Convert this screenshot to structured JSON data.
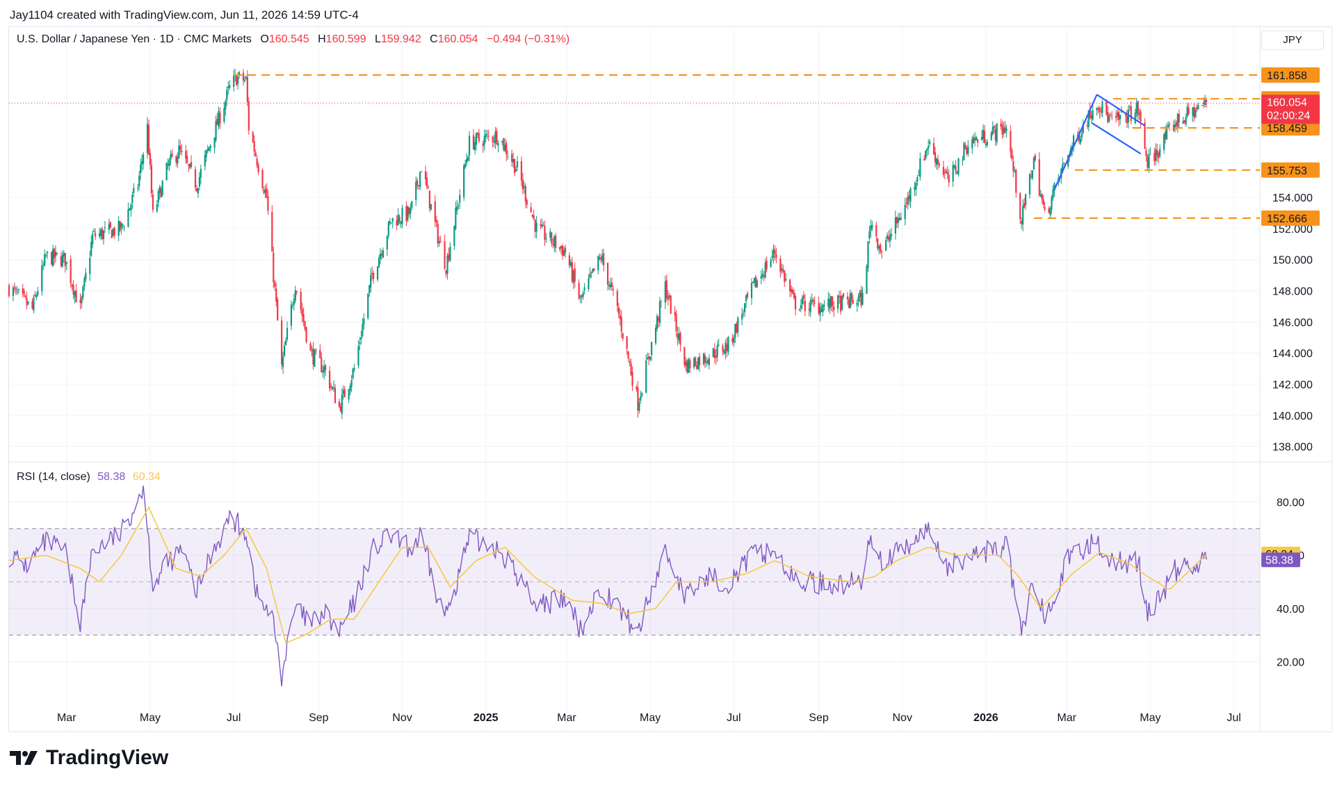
{
  "header": {
    "created_line": "Jay1104 created with TradingView.com, Jun 11, 2026 14:59 UTC-4"
  },
  "legend": {
    "symbol": "U.S. Dollar / Japanese Yen · 1D · CMC Markets",
    "open_label": "O",
    "open": "160.545",
    "high_label": "H",
    "high": "160.599",
    "low_label": "L",
    "low": "159.942",
    "close_label": "C",
    "close": "160.054",
    "change": "−0.494 (−0.31%)"
  },
  "currency_button": "JPY",
  "rsi_legend": {
    "label": "RSI (14, close)",
    "rsi": "58.38",
    "ma": "60.34"
  },
  "brand": "TradingView",
  "colors": {
    "up": "#089981",
    "down": "#f23645",
    "level": "#f7931a",
    "rsi": "#7e57c2",
    "rsi_ma": "#f7c948",
    "pattern": "#2962ff",
    "rsi_band": "#7e57c2"
  },
  "chart_data": [
    {
      "type": "candlestick",
      "title": "U.S. Dollar / Japanese Yen · 1D · CMC Markets",
      "x_ticks": [
        {
          "label": "Mar",
          "date": "2024-03-01"
        },
        {
          "label": "May",
          "date": "2024-05-01"
        },
        {
          "label": "Jul",
          "date": "2024-07-01"
        },
        {
          "label": "Sep",
          "date": "2024-09-01"
        },
        {
          "label": "Nov",
          "date": "2024-11-01"
        },
        {
          "label": "2025",
          "date": "2025-01-01",
          "bold": true
        },
        {
          "label": "Mar",
          "date": "2025-03-01"
        },
        {
          "label": "May",
          "date": "2025-05-01"
        },
        {
          "label": "Jul",
          "date": "2025-07-01"
        },
        {
          "label": "Sep",
          "date": "2025-09-01"
        },
        {
          "label": "Nov",
          "date": "2025-11-01"
        },
        {
          "label": "2026",
          "date": "2026-01-01",
          "bold": true
        },
        {
          "label": "Mar",
          "date": "2026-03-01"
        },
        {
          "label": "May",
          "date": "2026-05-01"
        },
        {
          "label": "Jul",
          "date": "2026-07-01"
        }
      ],
      "y_ticks": [
        "138.000",
        "140.000",
        "142.000",
        "144.000",
        "146.000",
        "148.000",
        "150.000",
        "152.000",
        "154.000"
      ],
      "ylim": [
        137.0,
        164.0
      ],
      "xlim": [
        "2024-01-19",
        "2026-07-20"
      ],
      "horizontal_levels": [
        {
          "label": "161.858",
          "value": 161.858,
          "from": "2024-07-01"
        },
        {
          "label": "160.332",
          "value": 160.332,
          "from": "2026-04-04"
        },
        {
          "label": "158.459",
          "value": 158.459,
          "from": "2026-04-18"
        },
        {
          "label": "155.753",
          "value": 155.753,
          "from": "2026-03-07"
        },
        {
          "label": "152.666",
          "value": 152.666,
          "from": "2026-02-05"
        }
      ],
      "last_price": {
        "label": "160.054",
        "value": 160.054,
        "countdown": "02:00:24"
      },
      "pattern_lines": [
        {
          "from": [
            "2026-02-20",
            154.5
          ],
          "to": [
            "2026-03-23",
            160.6
          ]
        },
        {
          "from": [
            "2026-03-23",
            160.6
          ],
          "to": [
            "2026-04-27",
            158.6
          ]
        },
        {
          "from": [
            "2026-03-19",
            158.8
          ],
          "to": [
            "2026-04-24",
            156.8
          ]
        }
      ],
      "price_path": [
        {
          "date": "2024-01-19",
          "price": 148.2
        },
        {
          "date": "2024-02-05",
          "price": 146.8
        },
        {
          "date": "2024-02-15",
          "price": 150.2
        },
        {
          "date": "2024-02-29",
          "price": 150.0
        },
        {
          "date": "2024-03-11",
          "price": 146.8
        },
        {
          "date": "2024-03-20",
          "price": 151.5
        },
        {
          "date": "2024-04-10",
          "price": 152.0
        },
        {
          "date": "2024-04-22",
          "price": 154.8
        },
        {
          "date": "2024-04-29",
          "price": 158.5
        },
        {
          "date": "2024-05-03",
          "price": 152.8
        },
        {
          "date": "2024-05-14",
          "price": 156.0
        },
        {
          "date": "2024-05-22",
          "price": 157.0
        },
        {
          "date": "2024-06-04",
          "price": 154.8
        },
        {
          "date": "2024-06-14",
          "price": 157.5
        },
        {
          "date": "2024-06-28",
          "price": 161.0
        },
        {
          "date": "2024-07-03",
          "price": 161.7
        },
        {
          "date": "2024-07-10",
          "price": 161.5
        },
        {
          "date": "2024-07-12",
          "price": 158.5
        },
        {
          "date": "2024-07-25",
          "price": 154.0
        },
        {
          "date": "2024-08-05",
          "price": 143.0
        },
        {
          "date": "2024-08-15",
          "price": 148.5
        },
        {
          "date": "2024-08-26",
          "price": 144.0
        },
        {
          "date": "2024-09-05",
          "price": 143.0
        },
        {
          "date": "2024-09-16",
          "price": 140.5
        },
        {
          "date": "2024-09-27",
          "price": 143.0
        },
        {
          "date": "2024-10-10",
          "price": 149.0
        },
        {
          "date": "2024-10-24",
          "price": 152.5
        },
        {
          "date": "2024-11-07",
          "price": 153.0
        },
        {
          "date": "2024-11-15",
          "price": 156.0
        },
        {
          "date": "2024-11-27",
          "price": 151.5
        },
        {
          "date": "2024-12-03",
          "price": 149.6
        },
        {
          "date": "2024-12-20",
          "price": 157.5
        },
        {
          "date": "2025-01-10",
          "price": 158.0
        },
        {
          "date": "2025-01-24",
          "price": 155.8
        },
        {
          "date": "2025-02-07",
          "price": 152.0
        },
        {
          "date": "2025-02-28",
          "price": 150.5
        },
        {
          "date": "2025-03-11",
          "price": 147.3
        },
        {
          "date": "2025-03-26",
          "price": 150.2
        },
        {
          "date": "2025-04-08",
          "price": 146.5
        },
        {
          "date": "2025-04-22",
          "price": 140.8
        },
        {
          "date": "2025-05-12",
          "price": 148.3
        },
        {
          "date": "2025-05-27",
          "price": 143.2
        },
        {
          "date": "2025-06-12",
          "price": 143.8
        },
        {
          "date": "2025-06-27",
          "price": 144.5
        },
        {
          "date": "2025-07-15",
          "price": 148.2
        },
        {
          "date": "2025-07-31",
          "price": 150.5
        },
        {
          "date": "2025-08-14",
          "price": 147.2
        },
        {
          "date": "2025-08-29",
          "price": 147.0
        },
        {
          "date": "2025-09-18",
          "price": 147.2
        },
        {
          "date": "2025-10-03",
          "price": 147.5
        },
        {
          "date": "2025-10-09",
          "price": 152.5
        },
        {
          "date": "2025-10-17",
          "price": 150.5
        },
        {
          "date": "2025-11-04",
          "price": 153.6
        },
        {
          "date": "2025-11-20",
          "price": 157.5
        },
        {
          "date": "2025-12-05",
          "price": 155.0
        },
        {
          "date": "2025-12-19",
          "price": 157.5
        },
        {
          "date": "2026-01-08",
          "price": 158.2
        },
        {
          "date": "2026-01-16",
          "price": 158.5
        },
        {
          "date": "2026-01-27",
          "price": 152.5
        },
        {
          "date": "2026-02-05",
          "price": 156.5
        },
        {
          "date": "2026-02-13",
          "price": 152.8
        },
        {
          "date": "2026-03-02",
          "price": 156.8
        },
        {
          "date": "2026-03-23",
          "price": 160.2
        },
        {
          "date": "2026-04-03",
          "price": 158.8
        },
        {
          "date": "2026-04-22",
          "price": 159.6
        },
        {
          "date": "2026-04-29",
          "price": 156.2
        },
        {
          "date": "2026-05-05",
          "price": 156.8
        },
        {
          "date": "2026-05-19",
          "price": 158.8
        },
        {
          "date": "2026-06-11",
          "price": 160.05
        }
      ]
    },
    {
      "type": "line",
      "title": "RSI (14, close)",
      "y_ticks": [
        "20.00",
        "40.00",
        "60.00",
        "80.00"
      ],
      "ylim": [
        5,
        95
      ],
      "bands": {
        "upper": 70,
        "middle": 50,
        "lower": 30
      },
      "series": [
        {
          "name": "RSI",
          "last": 58.38,
          "color": "#7e57c2"
        },
        {
          "name": "MA",
          "last": 60.34,
          "color": "#f7c948"
        }
      ],
      "rsi_path": [
        {
          "date": "2024-01-19",
          "value": 60
        },
        {
          "date": "2024-02-01",
          "value": 56
        },
        {
          "date": "2024-02-15",
          "value": 65
        },
        {
          "date": "2024-02-29",
          "value": 61
        },
        {
          "date": "2024-03-11",
          "value": 35
        },
        {
          "date": "2024-03-20",
          "value": 62
        },
        {
          "date": "2024-04-10",
          "value": 68
        },
        {
          "date": "2024-04-26",
          "value": 86
        },
        {
          "date": "2024-05-03",
          "value": 49
        },
        {
          "date": "2024-05-14",
          "value": 57
        },
        {
          "date": "2024-05-24",
          "value": 62
        },
        {
          "date": "2024-06-04",
          "value": 46
        },
        {
          "date": "2024-06-14",
          "value": 60
        },
        {
          "date": "2024-06-28",
          "value": 74
        },
        {
          "date": "2024-07-10",
          "value": 69
        },
        {
          "date": "2024-07-18",
          "value": 45
        },
        {
          "date": "2024-07-30",
          "value": 35
        },
        {
          "date": "2024-08-05",
          "value": 15
        },
        {
          "date": "2024-08-15",
          "value": 40
        },
        {
          "date": "2024-08-26",
          "value": 34
        },
        {
          "date": "2024-09-05",
          "value": 38
        },
        {
          "date": "2024-09-16",
          "value": 31
        },
        {
          "date": "2024-09-27",
          "value": 42
        },
        {
          "date": "2024-10-10",
          "value": 62
        },
        {
          "date": "2024-10-24",
          "value": 67
        },
        {
          "date": "2024-11-07",
          "value": 62
        },
        {
          "date": "2024-11-15",
          "value": 67
        },
        {
          "date": "2024-11-27",
          "value": 43
        },
        {
          "date": "2024-12-03",
          "value": 38
        },
        {
          "date": "2024-12-20",
          "value": 66
        },
        {
          "date": "2025-01-10",
          "value": 63
        },
        {
          "date": "2025-01-24",
          "value": 52
        },
        {
          "date": "2025-02-07",
          "value": 42
        },
        {
          "date": "2025-02-28",
          "value": 43
        },
        {
          "date": "2025-03-11",
          "value": 32
        },
        {
          "date": "2025-03-26",
          "value": 48
        },
        {
          "date": "2025-04-08",
          "value": 40
        },
        {
          "date": "2025-04-22",
          "value": 31
        },
        {
          "date": "2025-05-12",
          "value": 62
        },
        {
          "date": "2025-05-27",
          "value": 44
        },
        {
          "date": "2025-06-12",
          "value": 52
        },
        {
          "date": "2025-06-27",
          "value": 50
        },
        {
          "date": "2025-07-15",
          "value": 60
        },
        {
          "date": "2025-07-31",
          "value": 62
        },
        {
          "date": "2025-08-14",
          "value": 50
        },
        {
          "date": "2025-08-29",
          "value": 50
        },
        {
          "date": "2025-09-18",
          "value": 49
        },
        {
          "date": "2025-10-03",
          "value": 50
        },
        {
          "date": "2025-10-09",
          "value": 68
        },
        {
          "date": "2025-10-17",
          "value": 58
        },
        {
          "date": "2025-11-04",
          "value": 62
        },
        {
          "date": "2025-11-20",
          "value": 70
        },
        {
          "date": "2025-12-05",
          "value": 55
        },
        {
          "date": "2025-12-19",
          "value": 60
        },
        {
          "date": "2026-01-08",
          "value": 62
        },
        {
          "date": "2026-01-16",
          "value": 64
        },
        {
          "date": "2026-01-27",
          "value": 30
        },
        {
          "date": "2026-02-05",
          "value": 50
        },
        {
          "date": "2026-02-13",
          "value": 38
        },
        {
          "date": "2026-03-02",
          "value": 58
        },
        {
          "date": "2026-03-23",
          "value": 66
        },
        {
          "date": "2026-04-03",
          "value": 57
        },
        {
          "date": "2026-04-22",
          "value": 58
        },
        {
          "date": "2026-04-29",
          "value": 38
        },
        {
          "date": "2026-05-05",
          "value": 42
        },
        {
          "date": "2026-05-19",
          "value": 54
        },
        {
          "date": "2026-06-11",
          "value": 58.38
        }
      ],
      "ma_path": [
        {
          "date": "2024-01-19",
          "value": 58
        },
        {
          "date": "2024-02-15",
          "value": 60
        },
        {
          "date": "2024-03-11",
          "value": 55
        },
        {
          "date": "2024-03-25",
          "value": 50
        },
        {
          "date": "2024-04-10",
          "value": 60
        },
        {
          "date": "2024-04-30",
          "value": 78
        },
        {
          "date": "2024-05-20",
          "value": 55
        },
        {
          "date": "2024-06-07",
          "value": 52
        },
        {
          "date": "2024-06-24",
          "value": 60
        },
        {
          "date": "2024-07-10",
          "value": 70
        },
        {
          "date": "2024-07-25",
          "value": 55
        },
        {
          "date": "2024-08-08",
          "value": 27
        },
        {
          "date": "2024-08-22",
          "value": 30
        },
        {
          "date": "2024-09-10",
          "value": 36
        },
        {
          "date": "2024-09-27",
          "value": 36
        },
        {
          "date": "2024-10-15",
          "value": 50
        },
        {
          "date": "2024-11-01",
          "value": 63
        },
        {
          "date": "2024-11-20",
          "value": 63
        },
        {
          "date": "2024-12-06",
          "value": 48
        },
        {
          "date": "2024-12-25",
          "value": 58
        },
        {
          "date": "2025-01-15",
          "value": 63
        },
        {
          "date": "2025-02-05",
          "value": 52
        },
        {
          "date": "2025-03-05",
          "value": 43
        },
        {
          "date": "2025-03-26",
          "value": 42
        },
        {
          "date": "2025-04-15",
          "value": 38
        },
        {
          "date": "2025-05-05",
          "value": 40
        },
        {
          "date": "2025-05-20",
          "value": 50
        },
        {
          "date": "2025-06-15",
          "value": 50
        },
        {
          "date": "2025-07-10",
          "value": 53
        },
        {
          "date": "2025-07-31",
          "value": 58
        },
        {
          "date": "2025-08-25",
          "value": 52
        },
        {
          "date": "2025-09-25",
          "value": 50
        },
        {
          "date": "2025-10-12",
          "value": 52
        },
        {
          "date": "2025-10-28",
          "value": 58
        },
        {
          "date": "2025-11-20",
          "value": 63
        },
        {
          "date": "2025-12-10",
          "value": 60
        },
        {
          "date": "2026-01-10",
          "value": 60
        },
        {
          "date": "2026-01-25",
          "value": 52
        },
        {
          "date": "2026-02-10",
          "value": 40
        },
        {
          "date": "2026-03-05",
          "value": 53
        },
        {
          "date": "2026-03-25",
          "value": 61
        },
        {
          "date": "2026-04-15",
          "value": 57
        },
        {
          "date": "2026-04-29",
          "value": 52
        },
        {
          "date": "2026-05-15",
          "value": 47
        },
        {
          "date": "2026-06-11",
          "value": 60.34
        }
      ]
    }
  ]
}
